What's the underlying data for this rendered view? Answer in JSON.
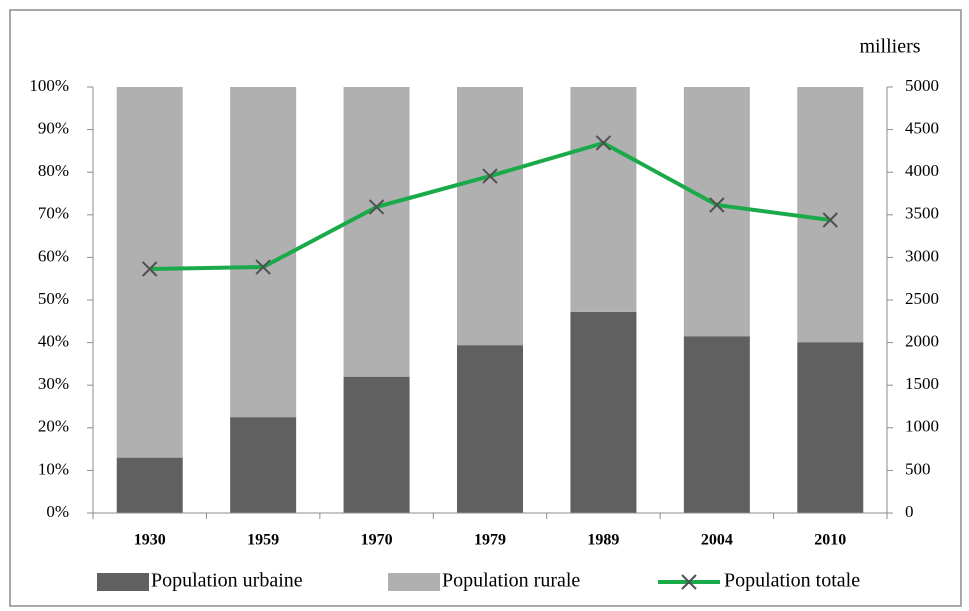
{
  "chart_data": {
    "type": "bar",
    "categories": [
      "1930",
      "1959",
      "1970",
      "1979",
      "1989",
      "2004",
      "2010"
    ],
    "series": [
      {
        "name": "Population urbaine",
        "color": "#606060",
        "values": [
          13,
          22.5,
          32,
          39.4,
          47.2,
          41.5,
          40.1
        ]
      },
      {
        "name": "Population rurale",
        "color": "#b0b0b0",
        "values": [
          87,
          77.5,
          68,
          60.6,
          52.8,
          58.5,
          59.9
        ]
      },
      {
        "name": "Population totale",
        "color": "#1aaa4a",
        "type": "line",
        "axis": "y2",
        "values": [
          2864,
          2887,
          3592,
          3955,
          4343,
          3615,
          3439
        ]
      }
    ],
    "stacked": true,
    "ylim": [
      0,
      100
    ],
    "yticks": [
      {
        "value": 0,
        "label": "0%"
      },
      {
        "value": 10,
        "label": "10%"
      },
      {
        "value": 20,
        "label": "20%"
      },
      {
        "value": 30,
        "label": "30%"
      },
      {
        "value": 40,
        "label": "40%"
      },
      {
        "value": 50,
        "label": "50%"
      },
      {
        "value": 60,
        "label": "60%"
      },
      {
        "value": 70,
        "label": "70%"
      },
      {
        "value": 80,
        "label": "80%"
      },
      {
        "value": 90,
        "label": "90%"
      },
      {
        "value": 100,
        "label": "100%"
      }
    ],
    "y2label": "milliers",
    "y2lim": [
      0,
      5000
    ],
    "y2ticks": [
      0,
      500,
      1000,
      1500,
      2000,
      2500,
      3000,
      3500,
      4000,
      4500,
      5000
    ],
    "legend": "bottom",
    "grid": false
  }
}
